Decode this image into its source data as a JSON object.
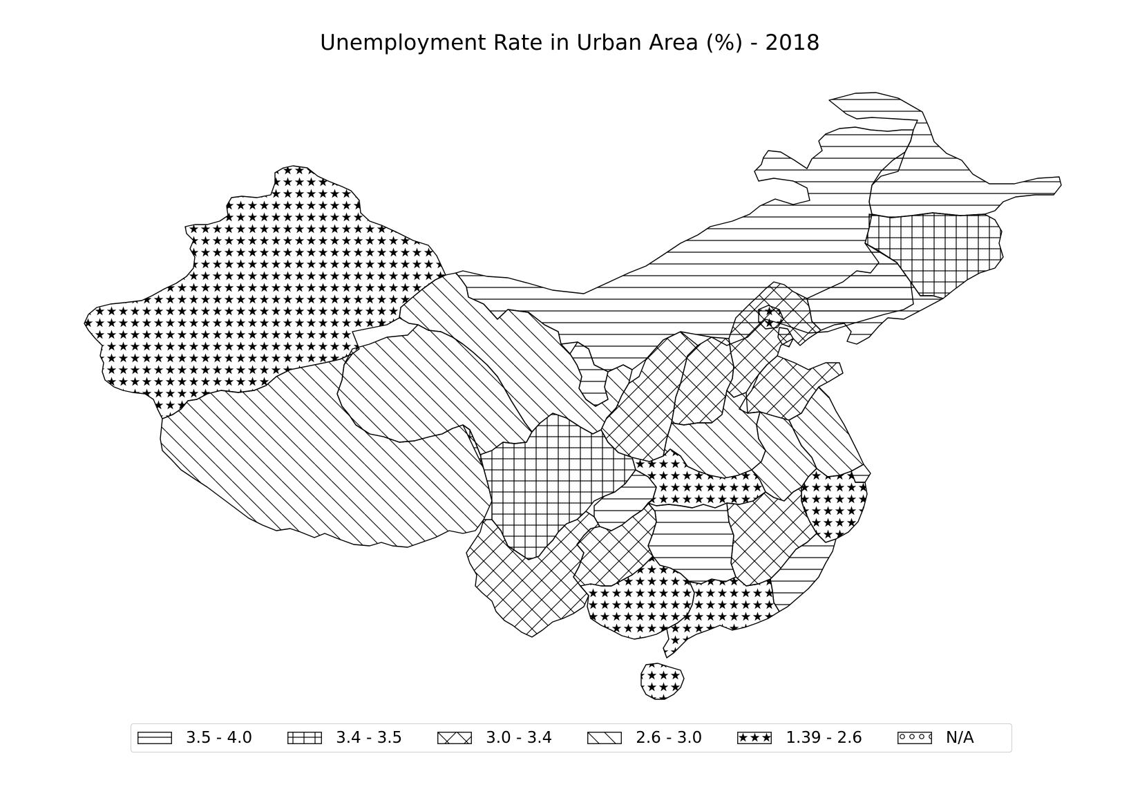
{
  "title": "Unemployment Rate in Urban Area (%) - 2018",
  "legend": [
    {
      "label": "3.5 - 4.0",
      "pattern": "horizontal-lines"
    },
    {
      "label": "3.4 - 3.5",
      "pattern": "grid"
    },
    {
      "label": "3.0 - 3.4",
      "pattern": "diagonal-crosshatch"
    },
    {
      "label": "2.6 - 3.0",
      "pattern": "diagonal-lines"
    },
    {
      "label": "1.39 - 2.6",
      "pattern": "stars"
    },
    {
      "label": "N/A",
      "pattern": "small-circles"
    }
  ],
  "colors": {
    "stroke": "#000000",
    "background": "#ffffff",
    "legend_border": "#cfcfcf"
  }
}
